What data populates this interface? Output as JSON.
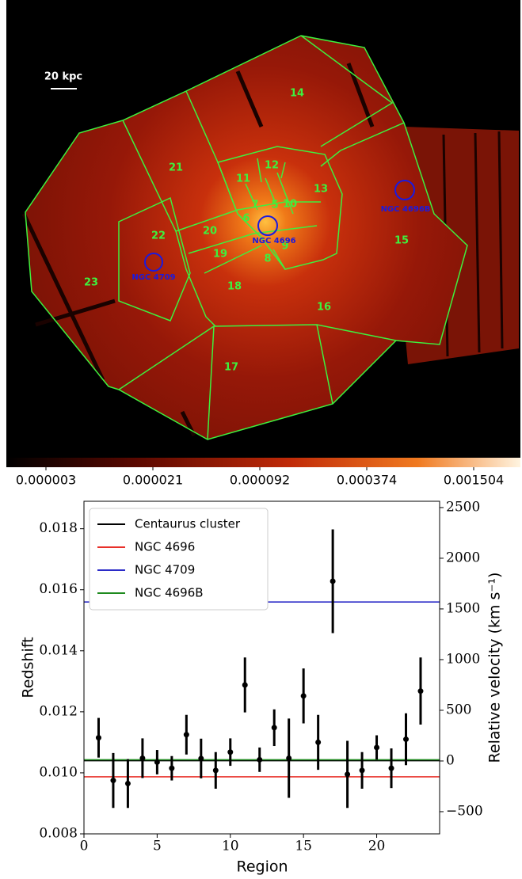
{
  "image": {
    "scale_label": "20 kpc",
    "region_labels": [
      "5",
      "6",
      "7",
      "8",
      "9",
      "10",
      "11",
      "12",
      "13",
      "14",
      "15",
      "16",
      "17",
      "18",
      "19",
      "20",
      "21",
      "22",
      "23"
    ],
    "galaxy_labels": [
      "NGC 4696",
      "NGC 4709",
      "NGC 4696B"
    ],
    "colorbar_ticks": [
      {
        "value": 3e-06,
        "label": "0.000003"
      },
      {
        "value": 2.1e-05,
        "label": "0.000021"
      },
      {
        "value": 9.2e-05,
        "label": "0.000092"
      },
      {
        "value": 0.000374,
        "label": "0.000374"
      },
      {
        "value": 0.001504,
        "label": "0.001504"
      }
    ]
  },
  "chart_data": {
    "type": "errorbar",
    "x_label": "Region",
    "y_label": "Redshift",
    "y2_label": "Relative velocity (km s⁻¹)",
    "x": [
      1,
      2,
      3,
      4,
      5,
      6,
      7,
      8,
      9,
      10,
      11,
      12,
      13,
      14,
      15,
      16,
      17,
      18,
      19,
      20,
      21,
      22,
      23
    ],
    "values": [
      0.01115,
      0.00975,
      0.00965,
      0.01048,
      0.01035,
      0.01015,
      0.01125,
      0.01047,
      0.01008,
      0.01068,
      0.01288,
      0.01043,
      0.01148,
      0.01048,
      0.01252,
      0.011,
      0.01628,
      0.00995,
      0.01008,
      0.01083,
      0.01015,
      0.0111,
      0.01268
    ],
    "errors": [
      0.00065,
      0.0009,
      0.0008,
      0.00065,
      0.0004,
      0.0004,
      0.00065,
      0.00065,
      0.0006,
      0.00045,
      0.0009,
      0.0004,
      0.0006,
      0.0013,
      0.0009,
      0.0009,
      0.0017,
      0.0011,
      0.0006,
      0.0004,
      0.00065,
      0.00085,
      0.0011
    ],
    "color": "#000000",
    "reference_lines": [
      {
        "name": "Centaurus cluster",
        "color": "#000000",
        "value": 0.0104
      },
      {
        "name": "NGC 4696",
        "color": "#e8302a",
        "value": 0.00987
      },
      {
        "name": "NGC 4709",
        "color": "#2b2bc8",
        "value": 0.0156
      },
      {
        "name": "NGC 4696B",
        "color": "#1e8a1e",
        "value": 0.01043
      }
    ],
    "xlim": [
      0,
      24.3
    ],
    "xticks": [
      0,
      5,
      10,
      15,
      20
    ],
    "ylim": [
      0.008,
      0.0189
    ],
    "yticks": [
      0.008,
      {
        "value": 0.01,
        "label": "0.010"
      },
      0.012,
      0.014,
      0.016,
      0.018
    ],
    "y2lim": [
      -719,
      2562
    ],
    "y2ticks": [
      {
        "value": -500,
        "label": "−500"
      },
      0,
      500,
      1000,
      1500,
      2000,
      2500
    ],
    "legend": "upper left"
  }
}
